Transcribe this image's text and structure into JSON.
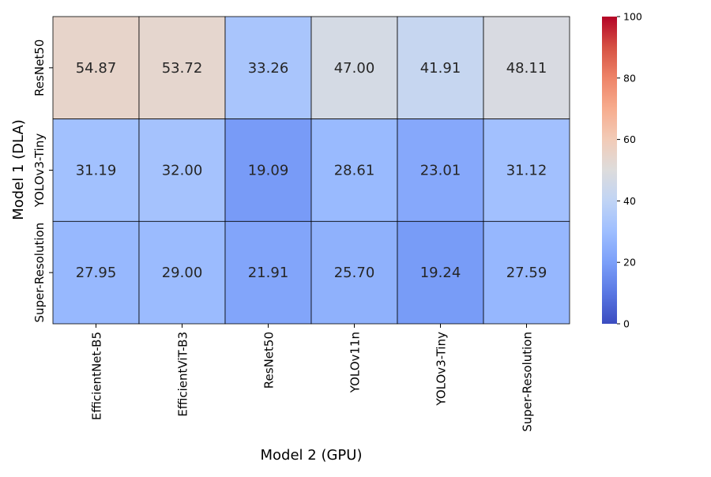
{
  "chart_data": {
    "type": "heatmap",
    "title": "",
    "xlabel": "Model 2 (GPU)",
    "ylabel": "Model 1 (DLA)",
    "x_categories": [
      "EfficientNet-B5",
      "EfficientViT-B3",
      "ResNet50",
      "YOLOv11n",
      "YOLOv3-Tiny",
      "Super-Resolution"
    ],
    "y_categories": [
      "ResNet50",
      "YOLOv3-Tiny",
      "Super-Resolution"
    ],
    "values": [
      [
        54.87,
        53.72,
        33.26,
        47.0,
        41.91,
        48.11
      ],
      [
        31.19,
        32.0,
        19.09,
        28.61,
        23.01,
        31.12
      ],
      [
        27.95,
        29.0,
        21.91,
        25.7,
        19.24,
        27.59
      ]
    ],
    "cell_labels": [
      [
        "54.87",
        "53.72",
        "33.26",
        "47.00",
        "41.91",
        "48.11"
      ],
      [
        "31.19",
        "32.00",
        "19.09",
        "28.61",
        "23.01",
        "31.12"
      ],
      [
        "27.95",
        "29.00",
        "21.91",
        "25.70",
        "19.24",
        "27.59"
      ]
    ],
    "colormap": "coolwarm",
    "vmin": 0,
    "vmax": 100,
    "colorbar_ticks": [
      0,
      20,
      40,
      60,
      80,
      100
    ],
    "colorbar_tick_labels": [
      "0",
      "20",
      "40",
      "60",
      "80",
      "100"
    ],
    "colors": {
      "cell_border": "#000000",
      "dark_text": "#262626",
      "light_text": "#ffffff"
    }
  }
}
